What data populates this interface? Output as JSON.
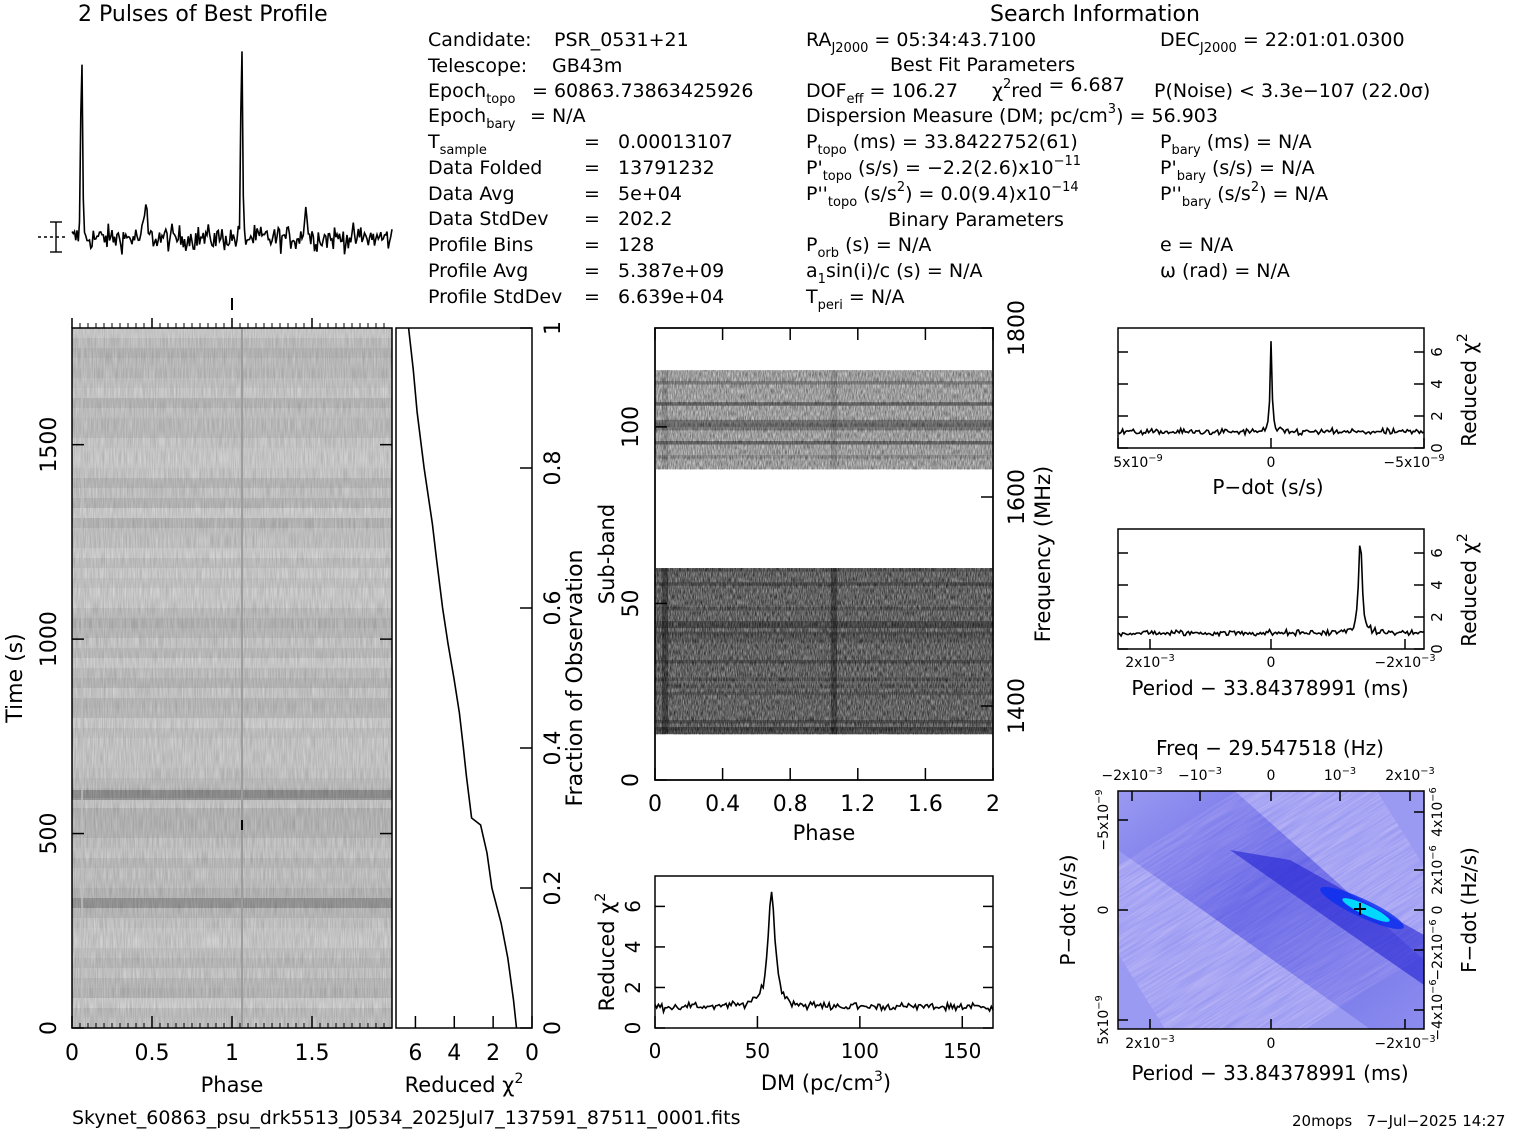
{
  "header": {
    "profile_title": "2 Pulses of Best Profile",
    "search_title": "Search Information",
    "best_fit_title": "Best Fit Parameters",
    "binary_title": "Binary Parameters"
  },
  "info_left": [
    {
      "label": "Candidate:",
      "value": "PSR_0531+21"
    },
    {
      "label": "Telescope:",
      "value": "GB43m"
    },
    {
      "label": "Epoch_topo",
      "value": "= 60863.73863425926"
    },
    {
      "label": "Epoch_bary",
      "value": "= N/A"
    },
    {
      "label": "T_sample",
      "value": "=   0.00013107"
    },
    {
      "label": "Data Folded",
      "value": "=   13791232"
    },
    {
      "label": "Data Avg",
      "value": "=   5e+04"
    },
    {
      "label": "Data StdDev",
      "value": "=   202.2"
    },
    {
      "label": "Profile Bins",
      "value": "=   128"
    },
    {
      "label": "Profile Avg",
      "value": "=   5.387e+09"
    },
    {
      "label": "Profile StdDev",
      "value": "=   6.639e+04"
    }
  ],
  "search_info": {
    "ra": "RAJ2000 = 05:34:43.7100",
    "dec": "DECJ2000 = 22:01:01.0300",
    "dof": "DOFeff = 106.27",
    "chi2": "χ2red = 6.687",
    "pnoise": "P(Noise) < 3.3e−107   (22.0σ)",
    "dm": "Dispersion Measure (DM; pc/cm3) = 56.903",
    "ptopo": "Ptopo (ms) =  33.8422752(61)",
    "pbary": "Pbary (ms) = N/A",
    "pdtopo": "P'topo (s/s) = −2.2(2.6)x10−11",
    "pdbary": "P'bary (s/s) = N/A",
    "pddtopo": "P''topo (s/s2) = 0.0(9.4)x10−14",
    "pddbary": "P''bary (s/s2) = N/A",
    "porb": "Porb (s) = N/A",
    "ecc": "e = N/A",
    "asini": "a1sin(i)/c (s) = N/A",
    "omega": "ω (rad) = N/A",
    "tperi": "Tperi = N/A"
  },
  "footer": {
    "filename": "Skynet_60863_psu_drk5513_J0534_2025Jul7_137591_87511_0001.fits",
    "stamp": "20mops   7−Jul−2025 14:27"
  },
  "chart_data": [
    {
      "type": "line",
      "name": "profile",
      "title": "2 Pulses of Best Profile",
      "pulse_phases": [
        0.06,
        1.06
      ],
      "secondary_phases": [
        0.46,
        1.46
      ]
    },
    {
      "type": "heatmap",
      "name": "time-phase",
      "xlabel": "Phase",
      "ylabel": "Time (s)",
      "xlim": [
        0,
        2
      ],
      "ylim": [
        0,
        1800
      ],
      "xticks": [
        "0",
        "0.5",
        "1",
        "1.5"
      ],
      "yticks": [
        "0",
        "500",
        "1000",
        "1500"
      ]
    },
    {
      "type": "line",
      "name": "reduced-chi2-vs-time",
      "xlabel": "Reduced χ2",
      "ylabel": "Fraction of Observation",
      "xlim": [
        7,
        0
      ],
      "ylim": [
        0,
        1
      ],
      "xticks": [
        "6",
        "4",
        "2",
        "0"
      ],
      "yticks": [
        "0.2",
        "0.4",
        "0.6",
        "0.8",
        "1"
      ],
      "x": [
        0.8,
        1.0,
        1.3,
        1.6,
        2.0,
        2.3,
        2.6,
        3.1,
        3.4,
        3.6,
        3.75,
        4.0,
        4.3,
        4.6,
        4.9,
        5.2,
        5.6,
        5.9,
        6.1,
        6.35
      ],
      "y": [
        0.0,
        0.04,
        0.1,
        0.15,
        0.2,
        0.25,
        0.29,
        0.3,
        0.36,
        0.4,
        0.45,
        0.5,
        0.55,
        0.6,
        0.67,
        0.72,
        0.8,
        0.88,
        0.94,
        1.0
      ]
    },
    {
      "type": "heatmap",
      "name": "subband-phase",
      "xlabel": "Phase",
      "ylabel": "Sub-band",
      "y2label": "Frequency (MHz)",
      "xlim": [
        0,
        2
      ],
      "ylim": [
        0,
        128
      ],
      "xticks": [
        "0",
        "0.4",
        "0.8",
        "1.2",
        "1.6",
        "2"
      ],
      "yticks": [
        "0",
        "50",
        "100"
      ],
      "y2ticks": [
        "1400",
        "1600",
        "1800"
      ],
      "populated_subbands": [
        [
          13,
          60
        ],
        [
          88,
          116
        ]
      ]
    },
    {
      "type": "line",
      "name": "reduced-chi2-vs-dm",
      "xlabel": "DM (pc/cm3)",
      "ylabel": "Reduced χ2",
      "xlim": [
        0,
        165
      ],
      "ylim": [
        0,
        7.5
      ],
      "xticks": [
        "0",
        "50",
        "100",
        "150"
      ],
      "yticks": [
        "0",
        "2",
        "4",
        "6"
      ],
      "peak_x": 56.9,
      "peak_y": 6.7,
      "baseline": 1.05
    },
    {
      "type": "line",
      "name": "reduced-chi2-vs-pdot",
      "xlabel": "P−dot (s/s)",
      "ylabel": "Reduced χ2",
      "xlim": [
        5e-09,
        -5e-09
      ],
      "ylim": [
        0,
        7.5
      ],
      "xticks": [
        "5x10−9",
        "0",
        "−5x10−9"
      ],
      "yticks": [
        "0",
        "2",
        "4",
        "6"
      ],
      "peak_x": 0,
      "peak_y": 6.7,
      "baseline": 1.0
    },
    {
      "type": "line",
      "name": "reduced-chi2-vs-period",
      "xlabel": "Period − 33.84378991 (ms)",
      "ylabel": "Reduced χ2",
      "xlim": [
        0.0025,
        -0.0025
      ],
      "ylim": [
        0,
        7.5
      ],
      "xticks": [
        "2x10−3",
        "0",
        "−2x10−3"
      ],
      "yticks": [
        "0",
        "2",
        "4",
        "6"
      ],
      "peak_x": -0.00146,
      "peak_y": 6.7,
      "baseline": 1.0
    },
    {
      "type": "heatmap",
      "name": "period-pdot",
      "title": "Freq − 29.547518 (Hz)",
      "xlabel": "Period − 33.84378991 (ms)",
      "ylabel": "P−dot (s/s)",
      "y2label": "F−dot (Hz/s)",
      "xticks": [
        "2x10−3",
        "0",
        "−2x10−3"
      ],
      "x2ticks": [
        "−2x10−3",
        "−10−3",
        "0",
        "10−3",
        "2x10−3"
      ],
      "yticks": [
        "−5x10−9",
        "0",
        "5x10−9"
      ],
      "y2ticks": [
        "4x10−6",
        "2x10−6",
        "0",
        "−2x10−6",
        "−4x10−6"
      ],
      "peak_x": -0.00146,
      "peak_y": 0
    }
  ],
  "colors": {
    "axes": "#000000",
    "background": "#ffffff",
    "ppdot_bg": "#9a9af2",
    "ppdot_peak": "#00d8ff"
  }
}
